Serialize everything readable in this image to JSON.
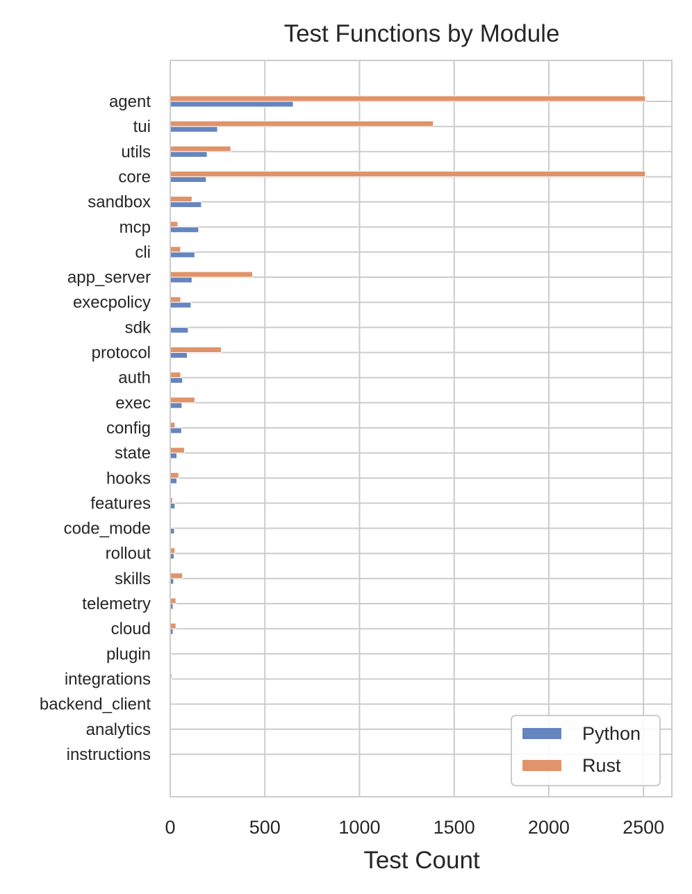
{
  "chart_data": {
    "type": "bar",
    "orientation": "horizontal",
    "title": "Test Functions by Module",
    "xlabel": "Test Count",
    "ylabel": "",
    "xlim": [
      0,
      2650
    ],
    "xticks": [
      0,
      500,
      1000,
      1500,
      2000,
      2500
    ],
    "grid": true,
    "legend_position": "bottom-right",
    "categories": [
      "agent",
      "tui",
      "utils",
      "core",
      "sandbox",
      "mcp",
      "cli",
      "app_server",
      "execpolicy",
      "sdk",
      "protocol",
      "auth",
      "exec",
      "config",
      "state",
      "hooks",
      "features",
      "code_mode",
      "rollout",
      "skills",
      "telemetry",
      "cloud",
      "plugin",
      "integrations",
      "backend_client",
      "analytics",
      "instructions"
    ],
    "series": [
      {
        "name": "Python",
        "color": "#6685bf",
        "values": [
          650,
          250,
          195,
          190,
          165,
          150,
          130,
          115,
          110,
          95,
          90,
          65,
          62,
          60,
          35,
          35,
          25,
          22,
          20,
          18,
          15,
          15,
          3,
          2,
          0,
          0,
          0
        ]
      },
      {
        "name": "Rust",
        "color": "#e0936a",
        "values": [
          2510,
          1390,
          320,
          2510,
          115,
          40,
          55,
          435,
          55,
          0,
          270,
          55,
          130,
          25,
          75,
          45,
          12,
          0,
          25,
          65,
          30,
          30,
          5,
          8,
          0,
          0,
          0
        ]
      }
    ]
  }
}
